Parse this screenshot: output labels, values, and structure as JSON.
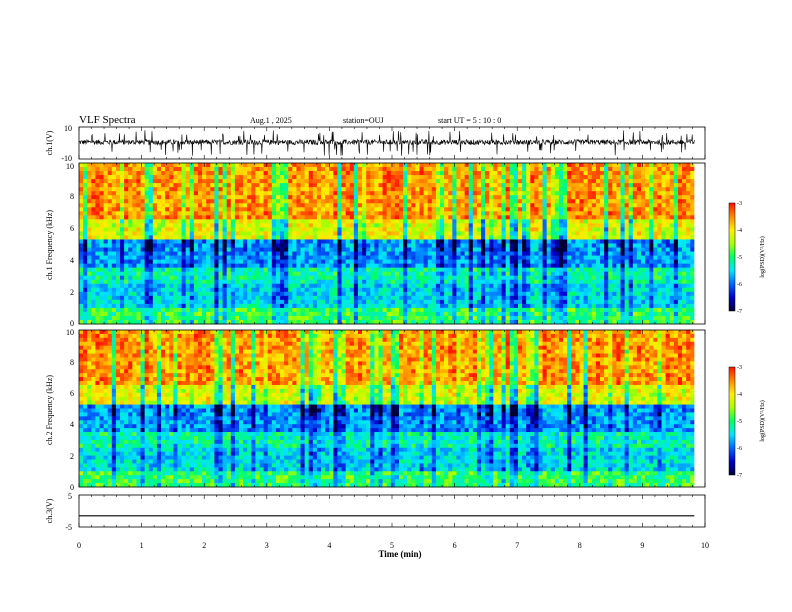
{
  "header": {
    "title": "VLF Spectra",
    "date": "Aug.1 , 2025",
    "station": "station=OUJ",
    "start": "start UT =  5 : 10 : 0"
  },
  "chart_data": [
    {
      "type": "line",
      "name": "ch1-waveform",
      "ylabel": "ch.1(V)",
      "ylim": [
        -10,
        10
      ],
      "y_ticks": [
        "10",
        "-10"
      ],
      "x_range_min": [
        0,
        9.83
      ],
      "baseline_v": 0.5,
      "noise_v": 1.6,
      "spike_v": 8
    },
    {
      "type": "heatmap",
      "name": "ch1-spectrogram",
      "ylabel": "ch.1 Frequency (kHz)",
      "ylim_khz": [
        0,
        10
      ],
      "y_ticks": [
        "0",
        "2",
        "4",
        "6",
        "8",
        "10"
      ],
      "x_range_min": [
        0,
        9.83
      ],
      "colorbar": {
        "label": "log(PSD)(V²/Hz)",
        "range": [
          -7,
          -3
        ],
        "ticks": [
          "-3",
          "-4",
          "-5",
          "-6",
          "-7"
        ]
      }
    },
    {
      "type": "heatmap",
      "name": "ch2-spectrogram",
      "ylabel": "ch.2 Frequency (kHz)",
      "ylim_khz": [
        0,
        10
      ],
      "y_ticks": [
        "0",
        "2",
        "4",
        "6",
        "8",
        "10"
      ],
      "x_range_min": [
        0,
        9.83
      ],
      "colorbar": {
        "label": "log(PSD)(V²/Hz)",
        "range": [
          -7,
          -3
        ],
        "ticks": [
          "-3",
          "-4",
          "-5",
          "-6",
          "-7"
        ]
      }
    },
    {
      "type": "line",
      "name": "ch3-waveform",
      "ylabel": "ch.3(V)",
      "ylim": [
        -5,
        5
      ],
      "y_ticks": [
        "5",
        "-5"
      ],
      "values_constant_v": -1.5,
      "x_range_min": [
        0,
        9.83
      ]
    }
  ],
  "x_axis": {
    "label": "Time (min)",
    "range": [
      0,
      10
    ],
    "ticks": [
      "0",
      "1",
      "2",
      "3",
      "4",
      "5",
      "6",
      "7",
      "8",
      "9",
      "10"
    ]
  },
  "colors": {
    "colormap": [
      "#000033",
      "#0000cc",
      "#0066ff",
      "#00e5ff",
      "#00ff66",
      "#aaff00",
      "#ffee00",
      "#ff8800",
      "#ff1100",
      "#ffffff"
    ]
  }
}
